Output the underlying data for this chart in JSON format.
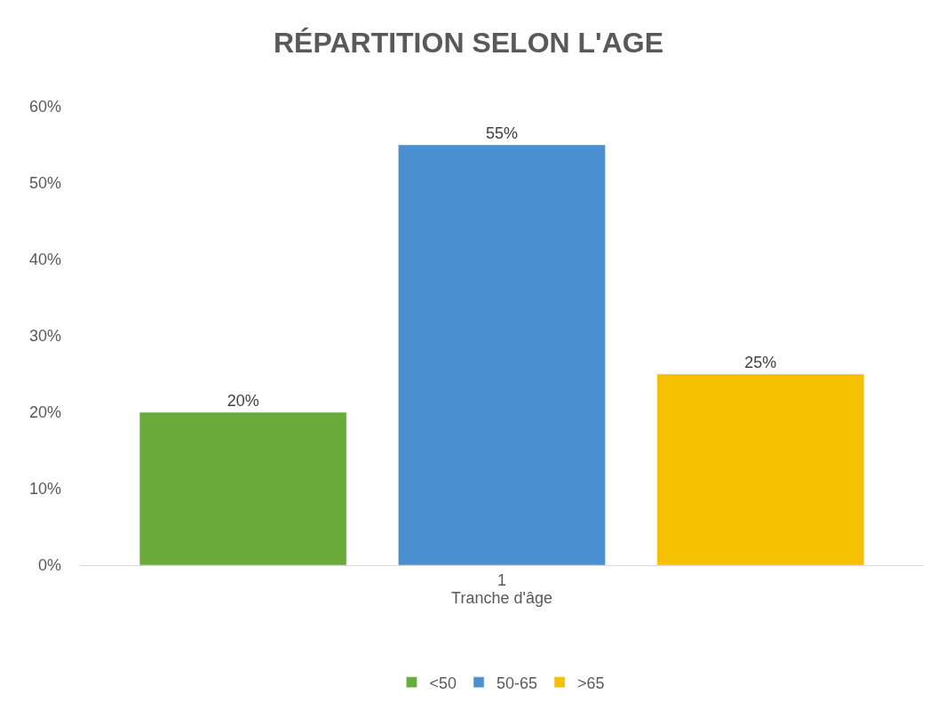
{
  "chart_data": {
    "type": "bar",
    "title": "RÉPARTITION SELON L'AGE",
    "xlabel": "Tranche d'âge",
    "categories": [
      "1"
    ],
    "series": [
      {
        "name": "<50",
        "color": "#6aaa3a",
        "values": [
          20
        ],
        "value_labels": [
          "20%"
        ]
      },
      {
        "name": "50-65",
        "color": "#4a90d0",
        "values": [
          55
        ],
        "value_labels": [
          "55%"
        ]
      },
      {
        "name": ">65",
        "color": "#f5c000",
        "values": [
          25
        ],
        "value_labels": [
          "25%"
        ]
      }
    ],
    "ylim": [
      0,
      60
    ],
    "yticks": [
      {
        "value": 0,
        "label": "0%"
      },
      {
        "value": 10,
        "label": "10%"
      },
      {
        "value": 20,
        "label": "20%"
      },
      {
        "value": 30,
        "label": "30%"
      },
      {
        "value": 40,
        "label": "40%"
      },
      {
        "value": 50,
        "label": "50%"
      },
      {
        "value": 60,
        "label": "60%"
      }
    ],
    "grid": false,
    "legend": "bottom"
  }
}
